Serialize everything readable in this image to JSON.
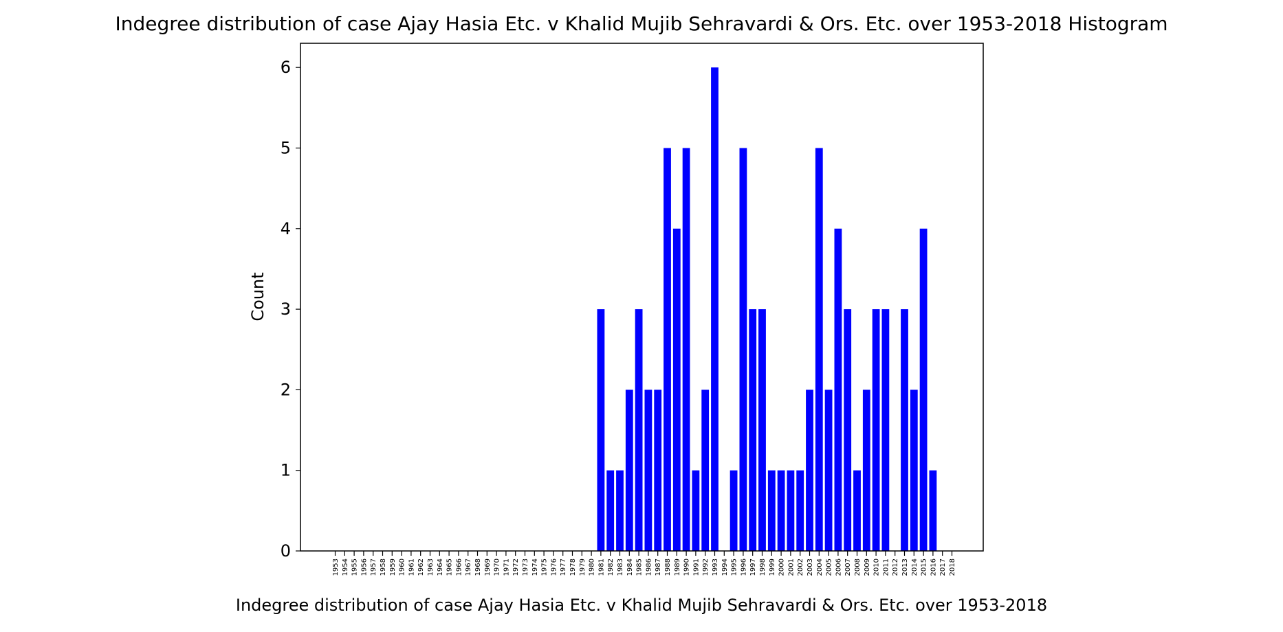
{
  "chart_data": {
    "type": "bar",
    "title": "Indegree distribution of case Ajay Hasia Etc. v Khalid Mujib Sehravardi & Ors. Etc. over 1953-2018 Histogram",
    "xlabel": "Indegree distribution of case Ajay Hasia Etc. v Khalid Mujib Sehravardi & Ors. Etc. over 1953-2018",
    "ylabel": "Count",
    "ylim": [
      0,
      6.3
    ],
    "yticks": [
      0,
      1,
      2,
      3,
      4,
      5,
      6
    ],
    "grid": false,
    "bar_color": "#0000ff",
    "categories": [
      "1953",
      "1954",
      "1955",
      "1956",
      "1957",
      "1958",
      "1959",
      "1960",
      "1961",
      "1962",
      "1963",
      "1964",
      "1965",
      "1966",
      "1967",
      "1968",
      "1969",
      "1970",
      "1971",
      "1972",
      "1973",
      "1974",
      "1975",
      "1976",
      "1977",
      "1978",
      "1979",
      "1980",
      "1981",
      "1982",
      "1983",
      "1984",
      "1985",
      "1986",
      "1987",
      "1988",
      "1989",
      "1990",
      "1991",
      "1992",
      "1993",
      "1994",
      "1995",
      "1996",
      "1997",
      "1998",
      "1999",
      "2000",
      "2001",
      "2002",
      "2003",
      "2004",
      "2005",
      "2006",
      "2007",
      "2008",
      "2009",
      "2010",
      "2011",
      "2012",
      "2013",
      "2014",
      "2015",
      "2016",
      "2017",
      "2018"
    ],
    "values": [
      0,
      0,
      0,
      0,
      0,
      0,
      0,
      0,
      0,
      0,
      0,
      0,
      0,
      0,
      0,
      0,
      0,
      0,
      0,
      0,
      0,
      0,
      0,
      0,
      0,
      0,
      0,
      0,
      3,
      1,
      1,
      2,
      3,
      2,
      2,
      5,
      4,
      5,
      1,
      2,
      6,
      0,
      1,
      5,
      3,
      3,
      1,
      1,
      1,
      1,
      2,
      5,
      2,
      4,
      3,
      1,
      2,
      3,
      3,
      0,
      3,
      2,
      4,
      1,
      0,
      0
    ]
  }
}
